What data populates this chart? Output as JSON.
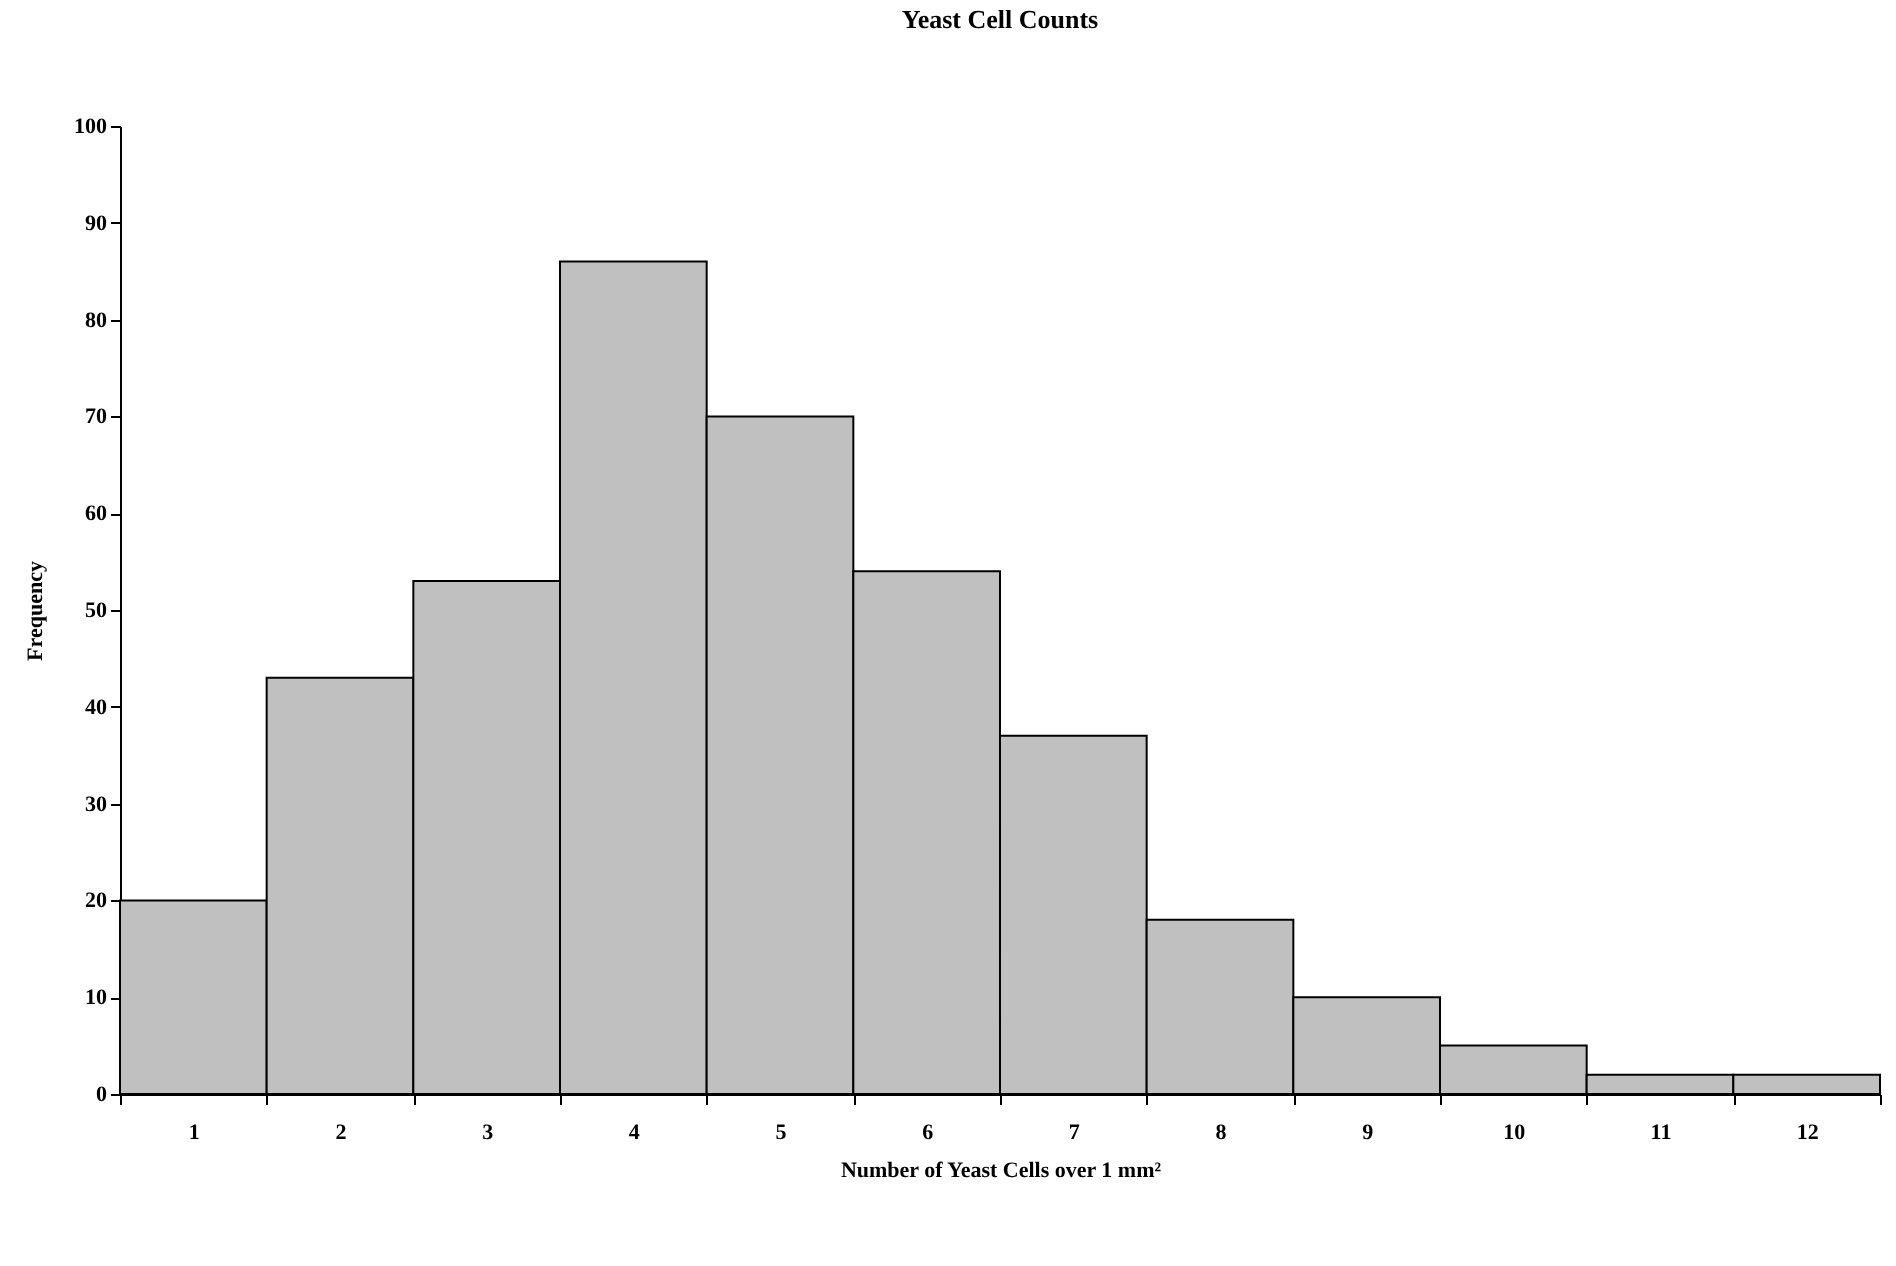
{
  "chart_data": {
    "type": "bar",
    "title": "Yeast Cell Counts",
    "xlabel": "Number of Yeast Cells over 1 mm²",
    "ylabel": "Frequency",
    "categories": [
      "1",
      "2",
      "3",
      "4",
      "5",
      "6",
      "7",
      "8",
      "9",
      "10",
      "11",
      "12"
    ],
    "series": [
      {
        "color": "#c0c0c0",
        "values": [
          20,
          43,
          53,
          86,
          70,
          54,
          37,
          18,
          10,
          5,
          2,
          2
        ]
      }
    ],
    "ylim": [
      0,
      100
    ],
    "yticks": [
      0,
      10,
      20,
      30,
      40,
      50,
      60,
      70,
      80,
      90,
      100
    ],
    "grid": false,
    "legend": false
  }
}
